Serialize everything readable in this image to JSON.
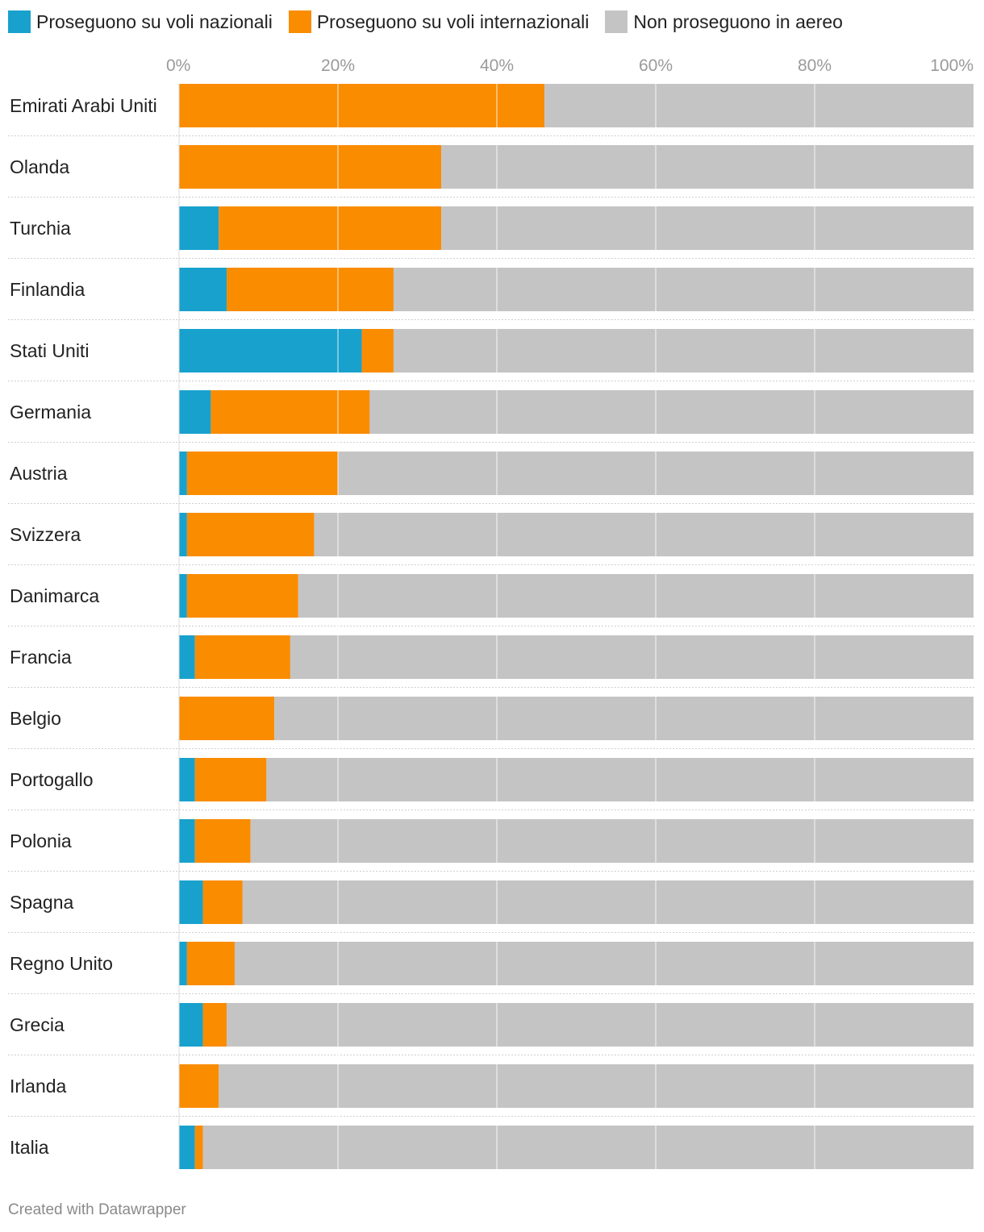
{
  "chart_data": {
    "type": "bar",
    "orientation": "horizontal",
    "stacked": true,
    "categories": [
      "Emirati Arabi Uniti",
      "Olanda",
      "Turchia",
      "Finlandia",
      "Stati Uniti",
      "Germania",
      "Austria",
      "Svizzera",
      "Danimarca",
      "Francia",
      "Belgio",
      "Portogallo",
      "Polonia",
      "Spagna",
      "Regno Unito",
      "Grecia",
      "Irlanda",
      "Italia"
    ],
    "series": [
      {
        "name": "Proseguono su voli nazionali",
        "color": "#18a1cd",
        "values": [
          0,
          0,
          5,
          6,
          23,
          4,
          1,
          1,
          1,
          2,
          0,
          2,
          2,
          3,
          1,
          3,
          0,
          2
        ]
      },
      {
        "name": "Proseguono su voli internazionali",
        "color": "#fa8c00",
        "values": [
          46,
          33,
          28,
          21,
          4,
          20,
          19,
          16,
          14,
          12,
          12,
          9,
          7,
          5,
          6,
          3,
          5,
          1
        ]
      },
      {
        "name": "Non proseguono in aereo",
        "color": "#c4c4c4",
        "values": [
          54,
          67,
          67,
          73,
          73,
          76,
          80,
          83,
          85,
          86,
          88,
          89,
          91,
          92,
          93,
          94,
          95,
          97
        ]
      }
    ],
    "xlim": [
      0,
      100
    ],
    "xticks": [
      0,
      20,
      40,
      60,
      80,
      100
    ],
    "xtick_labels": [
      "0%",
      "20%",
      "40%",
      "60%",
      "80%",
      "100%"
    ],
    "legend_position": "top-left",
    "grid": true,
    "title": "",
    "xlabel": "",
    "ylabel": ""
  },
  "footer": "Created with Datawrapper"
}
